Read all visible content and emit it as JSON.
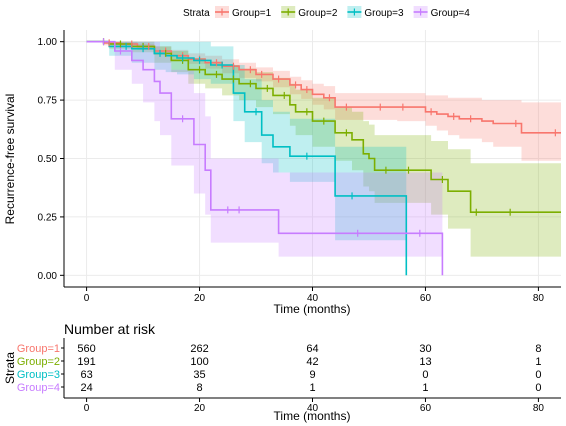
{
  "chart_data": [
    {
      "type": "line",
      "subtype": "kaplan-meier survival curve with confidence bands and censor marks",
      "legend": {
        "title": "Strata",
        "placement": "top",
        "entries": [
          "Group=1",
          "Group=2",
          "Group=3",
          "Group=4"
        ]
      },
      "ylabel": "Recurrence-free survival",
      "xlabel": "Time (months)",
      "xlim": [
        -4,
        84
      ],
      "ylim": [
        -0.05,
        1.05
      ],
      "x_ticks": [
        "0",
        "20",
        "40",
        "60",
        "80"
      ],
      "y_ticks": [
        "0.00",
        "0.25",
        "0.50",
        "0.75",
        "1.00"
      ],
      "grid": true,
      "series": [
        {
          "name": "Group=1",
          "color": "#F8766D",
          "x": [
            0,
            3,
            6,
            9,
            12,
            15,
            18,
            21,
            24,
            27,
            30,
            33,
            36,
            38,
            40,
            42,
            44,
            50,
            55,
            60,
            62,
            64,
            66,
            70,
            72,
            77,
            84
          ],
          "y": [
            1.0,
            0.995,
            0.99,
            0.98,
            0.96,
            0.94,
            0.925,
            0.91,
            0.895,
            0.88,
            0.86,
            0.84,
            0.815,
            0.795,
            0.775,
            0.76,
            0.72,
            0.72,
            0.72,
            0.7,
            0.69,
            0.68,
            0.67,
            0.66,
            0.65,
            0.61,
            0.61
          ],
          "upper": [
            1.0,
            1.0,
            1.0,
            0.99,
            0.98,
            0.965,
            0.95,
            0.94,
            0.925,
            0.91,
            0.89,
            0.875,
            0.85,
            0.835,
            0.82,
            0.81,
            0.78,
            0.78,
            0.78,
            0.77,
            0.77,
            0.76,
            0.76,
            0.75,
            0.75,
            0.74,
            0.74
          ],
          "lower": [
            1.0,
            0.985,
            0.975,
            0.965,
            0.945,
            0.92,
            0.905,
            0.885,
            0.865,
            0.845,
            0.83,
            0.805,
            0.775,
            0.755,
            0.73,
            0.71,
            0.665,
            0.665,
            0.66,
            0.64,
            0.62,
            0.6,
            0.585,
            0.57,
            0.55,
            0.49,
            0.49
          ],
          "censored": [
            4,
            8,
            11,
            14,
            17,
            20,
            23,
            26,
            29,
            31,
            34,
            37,
            39,
            43,
            46,
            52,
            56,
            61,
            65,
            68,
            76,
            83
          ]
        },
        {
          "name": "Group=2",
          "color": "#7CAE00",
          "x": [
            0,
            4,
            8,
            12,
            15,
            18,
            21,
            24,
            27,
            30,
            33,
            36,
            37,
            40,
            44,
            47,
            49,
            50,
            51,
            55,
            60,
            61,
            64,
            68,
            84
          ],
          "y": [
            1.0,
            0.99,
            0.98,
            0.95,
            0.92,
            0.88,
            0.86,
            0.84,
            0.82,
            0.8,
            0.77,
            0.73,
            0.7,
            0.66,
            0.61,
            0.58,
            0.52,
            0.5,
            0.45,
            0.45,
            0.45,
            0.41,
            0.36,
            0.27,
            0.27
          ],
          "upper": [
            1.0,
            1.0,
            1.0,
            0.98,
            0.96,
            0.93,
            0.915,
            0.9,
            0.885,
            0.87,
            0.845,
            0.82,
            0.795,
            0.76,
            0.72,
            0.7,
            0.66,
            0.645,
            0.6,
            0.6,
            0.6,
            0.575,
            0.54,
            0.48,
            0.48
          ],
          "lower": [
            1.0,
            0.97,
            0.955,
            0.91,
            0.87,
            0.82,
            0.8,
            0.77,
            0.75,
            0.72,
            0.69,
            0.64,
            0.6,
            0.55,
            0.49,
            0.45,
            0.38,
            0.36,
            0.31,
            0.31,
            0.31,
            0.26,
            0.2,
            0.08,
            0.08
          ],
          "censored": [
            3,
            6,
            10,
            14,
            17,
            20,
            23,
            26,
            29,
            32,
            35,
            39,
            42,
            46,
            53,
            57,
            63,
            69,
            75
          ]
        },
        {
          "name": "Group=3",
          "color": "#00BFC4",
          "x": [
            0,
            4,
            8,
            12,
            14,
            16,
            19,
            22,
            26,
            28,
            31,
            33,
            36,
            44,
            56.6
          ],
          "y": [
            1.0,
            0.98,
            0.97,
            0.95,
            0.94,
            0.93,
            0.92,
            0.9,
            0.78,
            0.7,
            0.6,
            0.55,
            0.51,
            0.34,
            0.0
          ],
          "upper": [
            1.0,
            1.0,
            1.0,
            1.0,
            1.0,
            1.0,
            1.0,
            0.98,
            0.9,
            0.84,
            0.75,
            0.7,
            0.67,
            0.55,
            0.55
          ],
          "lower": [
            1.0,
            0.94,
            0.91,
            0.88,
            0.87,
            0.86,
            0.84,
            0.82,
            0.66,
            0.57,
            0.48,
            0.44,
            0.4,
            0.15,
            0.15
          ],
          "censored": [
            7,
            10,
            13,
            17,
            20,
            24,
            30,
            39,
            47
          ]
        },
        {
          "name": "Group=4",
          "color": "#C77CFF",
          "x": [
            0,
            5,
            8,
            10,
            12,
            13,
            15,
            18,
            19,
            21,
            22,
            28,
            34,
            63
          ],
          "y": [
            1.0,
            0.96,
            0.92,
            0.88,
            0.83,
            0.78,
            0.67,
            0.67,
            0.56,
            0.45,
            0.28,
            0.28,
            0.18,
            0.0
          ],
          "upper": [
            1.0,
            1.0,
            1.0,
            1.0,
            1.0,
            0.96,
            0.88,
            0.88,
            0.78,
            0.68,
            0.5,
            0.5,
            0.44,
            0.44
          ],
          "lower": [
            1.0,
            0.88,
            0.82,
            0.74,
            0.66,
            0.6,
            0.47,
            0.47,
            0.35,
            0.26,
            0.14,
            0.14,
            0.08,
            0.08
          ],
          "censored": [
            3,
            6,
            17,
            25,
            27,
            48,
            59
          ]
        }
      ]
    },
    {
      "type": "table",
      "title": "Number at risk",
      "ylabel": "Strata",
      "xlabel": "Time (months)",
      "time_points": [
        0,
        20,
        40,
        60,
        80
      ],
      "x_ticks": [
        "0",
        "20",
        "40",
        "60",
        "80"
      ],
      "rows": [
        {
          "name": "Group=1",
          "color": "#F8766D",
          "values": [
            "560",
            "262",
            "64",
            "30",
            "8"
          ]
        },
        {
          "name": "Group=2",
          "color": "#7CAE00",
          "values": [
            "191",
            "100",
            "42",
            "13",
            "1"
          ]
        },
        {
          "name": "Group=3",
          "color": "#00BFC4",
          "values": [
            "63",
            "35",
            "9",
            "0",
            "0"
          ]
        },
        {
          "name": "Group=4",
          "color": "#C77CFF",
          "values": [
            "24",
            "8",
            "1",
            "1",
            "0"
          ]
        }
      ]
    }
  ]
}
